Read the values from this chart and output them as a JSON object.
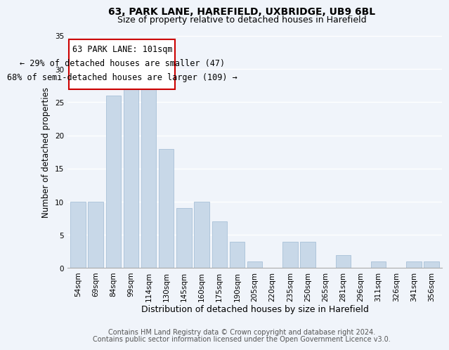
{
  "title": "63, PARK LANE, HAREFIELD, UXBRIDGE, UB9 6BL",
  "subtitle": "Size of property relative to detached houses in Harefield",
  "xlabel": "Distribution of detached houses by size in Harefield",
  "ylabel": "Number of detached properties",
  "bar_labels": [
    "54sqm",
    "69sqm",
    "84sqm",
    "99sqm",
    "114sqm",
    "130sqm",
    "145sqm",
    "160sqm",
    "175sqm",
    "190sqm",
    "205sqm",
    "220sqm",
    "235sqm",
    "250sqm",
    "265sqm",
    "281sqm",
    "296sqm",
    "311sqm",
    "326sqm",
    "341sqm",
    "356sqm"
  ],
  "bar_values": [
    10,
    10,
    26,
    29,
    29,
    18,
    9,
    10,
    7,
    4,
    1,
    0,
    4,
    4,
    0,
    2,
    0,
    1,
    0,
    1,
    1
  ],
  "bar_color": "#c8d8e8",
  "bar_edge_color": "#a8c0d8",
  "annotation_line1": "63 PARK LANE: 101sqm",
  "annotation_line2": "← 29% of detached houses are smaller (47)",
  "annotation_line3": "68% of semi-detached houses are larger (109) →",
  "ylim": [
    0,
    35
  ],
  "yticks": [
    0,
    5,
    10,
    15,
    20,
    25,
    30,
    35
  ],
  "footer_line1": "Contains HM Land Registry data © Crown copyright and database right 2024.",
  "footer_line2": "Contains public sector information licensed under the Open Government Licence v3.0.",
  "background_color": "#f0f4fa",
  "grid_color": "#ffffff",
  "title_fontsize": 10,
  "subtitle_fontsize": 9,
  "annotation_fontsize": 8.5,
  "footer_fontsize": 7,
  "tick_fontsize": 7.5,
  "ylabel_fontsize": 8.5,
  "xlabel_fontsize": 9
}
